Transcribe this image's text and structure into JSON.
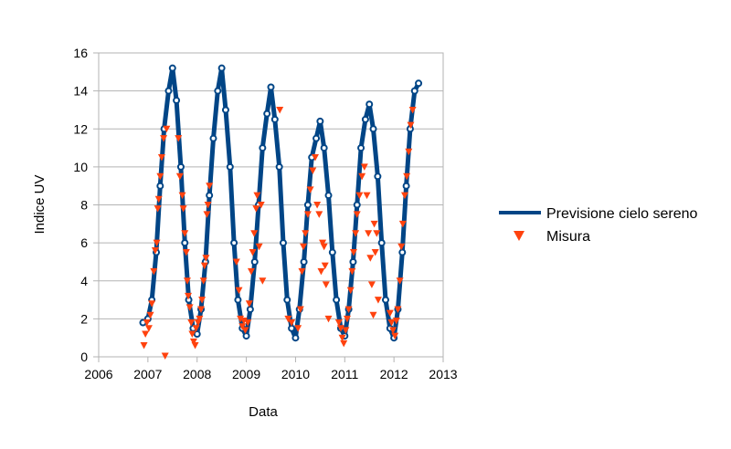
{
  "chart_data": {
    "type": "scatter",
    "xlabel": "Data",
    "ylabel": "Indice UV",
    "xlim": [
      2006,
      2013
    ],
    "ylim": [
      0,
      16
    ],
    "xticks": [
      2006,
      2007,
      2008,
      2009,
      2010,
      2011,
      2012,
      2013
    ],
    "yticks": [
      0,
      2,
      4,
      6,
      8,
      10,
      12,
      14,
      16
    ],
    "grid": "horizontal",
    "legend_position": "right",
    "series": [
      {
        "name": "Previsione cielo sereno",
        "color": "#004586",
        "marker": "line",
        "points": [
          [
            2006.9,
            1.8
          ],
          [
            2007.0,
            2.0
          ],
          [
            2007.08,
            3.0
          ],
          [
            2007.17,
            5.5
          ],
          [
            2007.25,
            9.0
          ],
          [
            2007.33,
            12.0
          ],
          [
            2007.42,
            14.0
          ],
          [
            2007.5,
            15.2
          ],
          [
            2007.58,
            13.5
          ],
          [
            2007.67,
            10.0
          ],
          [
            2007.75,
            6.0
          ],
          [
            2007.83,
            3.0
          ],
          [
            2007.92,
            1.5
          ],
          [
            2008.0,
            1.2
          ],
          [
            2008.08,
            2.5
          ],
          [
            2008.17,
            5.0
          ],
          [
            2008.25,
            8.5
          ],
          [
            2008.33,
            11.5
          ],
          [
            2008.42,
            14.0
          ],
          [
            2008.5,
            15.2
          ],
          [
            2008.58,
            13.0
          ],
          [
            2008.67,
            10.0
          ],
          [
            2008.75,
            6.0
          ],
          [
            2008.83,
            3.0
          ],
          [
            2008.92,
            1.5
          ],
          [
            2009.0,
            1.1
          ],
          [
            2009.08,
            2.5
          ],
          [
            2009.17,
            5.0
          ],
          [
            2009.25,
            8.0
          ],
          [
            2009.33,
            11.0
          ],
          [
            2009.42,
            12.8
          ],
          [
            2009.5,
            14.2
          ],
          [
            2009.58,
            12.5
          ],
          [
            2009.67,
            10.0
          ],
          [
            2009.75,
            6.0
          ],
          [
            2009.83,
            3.0
          ],
          [
            2009.92,
            1.5
          ],
          [
            2010.0,
            1.0
          ],
          [
            2010.08,
            2.5
          ],
          [
            2010.17,
            5.0
          ],
          [
            2010.25,
            8.0
          ],
          [
            2010.33,
            10.5
          ],
          [
            2010.42,
            11.5
          ],
          [
            2010.5,
            12.4
          ],
          [
            2010.58,
            11.0
          ],
          [
            2010.67,
            8.5
          ],
          [
            2010.75,
            5.5
          ],
          [
            2010.83,
            3.0
          ],
          [
            2010.92,
            1.5
          ],
          [
            2011.0,
            1.1
          ],
          [
            2011.08,
            2.5
          ],
          [
            2011.17,
            5.0
          ],
          [
            2011.25,
            8.0
          ],
          [
            2011.33,
            11.0
          ],
          [
            2011.42,
            12.5
          ],
          [
            2011.5,
            13.3
          ],
          [
            2011.58,
            12.0
          ],
          [
            2011.67,
            9.5
          ],
          [
            2011.75,
            6.0
          ],
          [
            2011.83,
            3.0
          ],
          [
            2011.92,
            1.5
          ],
          [
            2012.0,
            1.0
          ],
          [
            2012.08,
            2.5
          ],
          [
            2012.17,
            5.5
          ],
          [
            2012.25,
            9.0
          ],
          [
            2012.33,
            12.0
          ],
          [
            2012.42,
            14.0
          ],
          [
            2012.5,
            14.4
          ]
        ]
      },
      {
        "name": "Misura",
        "color": "#ff420e",
        "marker": "triangle-down",
        "points": [
          [
            2006.92,
            0.6
          ],
          [
            2006.95,
            1.2
          ],
          [
            2006.98,
            1.8
          ],
          [
            2007.02,
            1.5
          ],
          [
            2007.05,
            2.2
          ],
          [
            2007.08,
            2.8
          ],
          [
            2007.12,
            4.5
          ],
          [
            2007.15,
            5.6
          ],
          [
            2007.18,
            6.0
          ],
          [
            2007.2,
            7.8
          ],
          [
            2007.22,
            8.3
          ],
          [
            2007.25,
            9.5
          ],
          [
            2007.28,
            10.5
          ],
          [
            2007.32,
            11.5
          ],
          [
            2007.35,
            0.05
          ],
          [
            2007.38,
            12.0
          ],
          [
            2007.62,
            11.5
          ],
          [
            2007.65,
            9.5
          ],
          [
            2007.7,
            8.5
          ],
          [
            2007.72,
            7.8
          ],
          [
            2007.75,
            6.5
          ],
          [
            2007.78,
            5.5
          ],
          [
            2007.8,
            4.0
          ],
          [
            2007.82,
            3.2
          ],
          [
            2007.85,
            2.6
          ],
          [
            2007.88,
            1.8
          ],
          [
            2007.9,
            1.2
          ],
          [
            2007.93,
            0.8
          ],
          [
            2007.96,
            0.6
          ],
          [
            2007.98,
            1.5
          ],
          [
            2008.02,
            1.8
          ],
          [
            2008.05,
            2.0
          ],
          [
            2008.08,
            2.5
          ],
          [
            2008.1,
            3.0
          ],
          [
            2008.13,
            4.0
          ],
          [
            2008.15,
            4.8
          ],
          [
            2008.18,
            5.2
          ],
          [
            2008.2,
            7.5
          ],
          [
            2008.22,
            8.0
          ],
          [
            2008.25,
            9.0
          ],
          [
            2008.8,
            5.0
          ],
          [
            2008.85,
            3.5
          ],
          [
            2008.88,
            2.0
          ],
          [
            2008.92,
            1.6
          ],
          [
            2008.95,
            1.9
          ],
          [
            2008.98,
            1.4
          ],
          [
            2009.03,
            1.8
          ],
          [
            2009.06,
            2.8
          ],
          [
            2009.1,
            4.5
          ],
          [
            2009.13,
            5.5
          ],
          [
            2009.16,
            6.5
          ],
          [
            2009.2,
            7.8
          ],
          [
            2009.22,
            8.5
          ],
          [
            2009.26,
            5.8
          ],
          [
            2009.3,
            8.0
          ],
          [
            2009.33,
            4.0
          ],
          [
            2009.68,
            13.0
          ],
          [
            2009.85,
            2.0
          ],
          [
            2009.92,
            1.8
          ],
          [
            2010.05,
            1.5
          ],
          [
            2010.1,
            2.5
          ],
          [
            2010.13,
            4.5
          ],
          [
            2010.16,
            5.8
          ],
          [
            2010.2,
            6.5
          ],
          [
            2010.25,
            7.5
          ],
          [
            2010.3,
            8.8
          ],
          [
            2010.35,
            9.8
          ],
          [
            2010.4,
            10.5
          ],
          [
            2010.44,
            8.0
          ],
          [
            2010.48,
            7.5
          ],
          [
            2010.52,
            4.5
          ],
          [
            2010.55,
            6.0
          ],
          [
            2010.58,
            5.8
          ],
          [
            2010.6,
            4.8
          ],
          [
            2010.62,
            3.8
          ],
          [
            2010.67,
            2.0
          ],
          [
            2010.88,
            1.8
          ],
          [
            2010.92,
            1.5
          ],
          [
            2010.95,
            1.0
          ],
          [
            2010.98,
            0.7
          ],
          [
            2011.02,
            1.4
          ],
          [
            2011.05,
            2.0
          ],
          [
            2011.08,
            2.5
          ],
          [
            2011.12,
            3.5
          ],
          [
            2011.15,
            4.5
          ],
          [
            2011.18,
            5.5
          ],
          [
            2011.22,
            6.5
          ],
          [
            2011.25,
            7.5
          ],
          [
            2011.3,
            8.5
          ],
          [
            2011.35,
            9.5
          ],
          [
            2011.4,
            10.0
          ],
          [
            2011.45,
            8.5
          ],
          [
            2011.48,
            6.5
          ],
          [
            2011.52,
            5.2
          ],
          [
            2011.55,
            3.8
          ],
          [
            2011.58,
            2.2
          ],
          [
            2011.6,
            7.0
          ],
          [
            2011.62,
            5.5
          ],
          [
            2011.65,
            6.5
          ],
          [
            2011.68,
            3.0
          ],
          [
            2011.92,
            2.3
          ],
          [
            2011.95,
            1.8
          ],
          [
            2011.98,
            1.4
          ],
          [
            2012.02,
            1.1
          ],
          [
            2012.05,
            1.9
          ],
          [
            2012.08,
            2.5
          ],
          [
            2012.12,
            4.0
          ],
          [
            2012.15,
            5.8
          ],
          [
            2012.18,
            7.0
          ],
          [
            2012.22,
            8.5
          ],
          [
            2012.26,
            9.5
          ],
          [
            2012.3,
            10.8
          ],
          [
            2012.34,
            12.2
          ],
          [
            2012.38,
            13.0
          ]
        ]
      }
    ]
  }
}
